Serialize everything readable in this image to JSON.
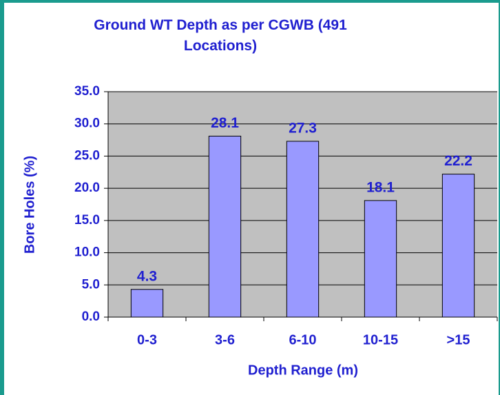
{
  "chart_data": {
    "type": "bar",
    "title": "Ground WT Depth as per CGWB  (491 Locations)",
    "x_label": "Depth Range (m)",
    "y_label": "Bore Holes (%)",
    "categories": [
      "0-3",
      "3-6",
      "6-10",
      "10-15",
      ">15"
    ],
    "values": [
      4.3,
      28.1,
      27.3,
      18.1,
      22.2
    ],
    "color": "#9999ff",
    "ylim": [
      0,
      35
    ],
    "yticks": [
      {
        "value": 0,
        "label": "0.0"
      },
      {
        "value": 5,
        "label": "5.0"
      },
      {
        "value": 10,
        "label": "10.0"
      },
      {
        "value": 15,
        "label": "15.0"
      },
      {
        "value": 20,
        "label": "20.0"
      },
      {
        "value": 25,
        "label": "25.0"
      },
      {
        "value": 30,
        "label": "30.0"
      },
      {
        "value": 35,
        "label": "35.0"
      }
    ],
    "grid": true
  }
}
